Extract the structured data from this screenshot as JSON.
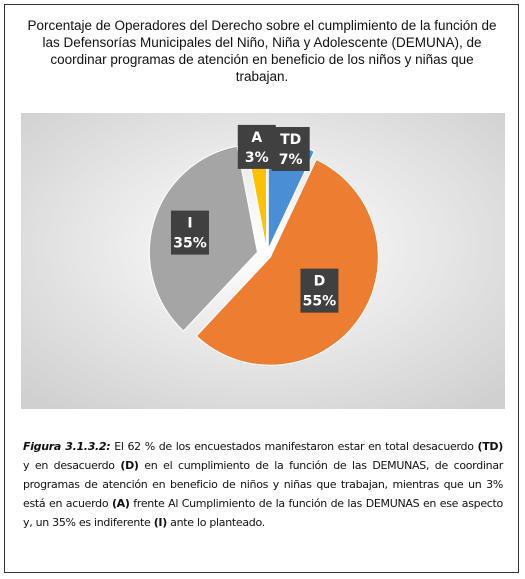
{
  "chart_data": {
    "type": "pie",
    "title": "Porcentaje de Operadores del Derecho sobre el cumplimiento de la función de las Defensorías Municipales del Niño, Niña y Adolescente (DEMUNA), de coordinar programas de atención en beneficio de los niños y niñas que trabajan.",
    "categories": [
      "TD",
      "D",
      "I",
      "A"
    ],
    "values": [
      7,
      55,
      35,
      3
    ],
    "value_labels": [
      "7%",
      "55%",
      "35%",
      "3%"
    ],
    "colors": [
      "#4a8fd6",
      "#ed7d31",
      "#a5a5a5",
      "#ffc000"
    ]
  },
  "caption": {
    "figure_label": "Figura 3.1.3.2:",
    "parts": [
      {
        "text": " El 62 % de los encuestados manifestaron estar en total desacuerdo ",
        "bold": false
      },
      {
        "text": "(TD)",
        "bold": true
      },
      {
        "text": " y en desacuerdo ",
        "bold": false
      },
      {
        "text": "(D)",
        "bold": true
      },
      {
        "text": " en el cumplimiento de la función de las DEMUNAS, de coordinar programas de atención en beneficio de niños y niñas que trabajan, mientras que un 3% está en acuerdo ",
        "bold": false
      },
      {
        "text": "(A)",
        "bold": true
      },
      {
        "text": " frente Al Cumplimiento de la función de las DEMUNAS en ese aspecto y, un 35% es indiferente ",
        "bold": false
      },
      {
        "text": "(I)",
        "bold": true
      },
      {
        "text": " ante lo planteado.",
        "bold": false
      }
    ]
  }
}
